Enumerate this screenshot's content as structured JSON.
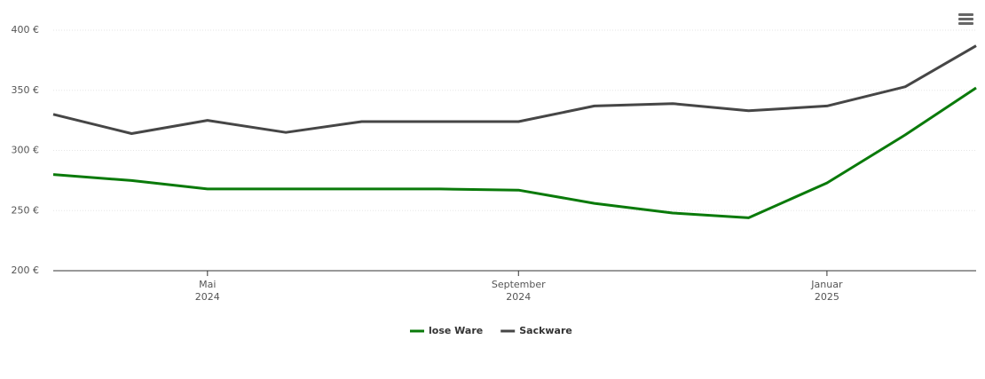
{
  "chart_data": {
    "type": "line",
    "x": [
      "2024-03",
      "2024-04",
      "2024-05",
      "2024-06",
      "2024-07",
      "2024-08",
      "2024-09",
      "2024-10",
      "2024-11",
      "2024-12",
      "2025-01",
      "2025-02",
      "2025-03"
    ],
    "series": [
      {
        "name": "lose Ware",
        "color": "#0a7a0a",
        "values": [
          280,
          275,
          268,
          268,
          268,
          268,
          267,
          256,
          248,
          244,
          273,
          313,
          352
        ]
      },
      {
        "name": "Sackware",
        "color": "#464646",
        "values": [
          330,
          314,
          325,
          315,
          324,
          324,
          324,
          337,
          339,
          333,
          337,
          353,
          387
        ]
      }
    ],
    "xlim": [
      "2024-03",
      "2025-03"
    ],
    "xticks": [
      {
        "value": "2024-05",
        "label": "Mai 2024"
      },
      {
        "value": "2024-09",
        "label": "September 2024"
      },
      {
        "value": "2025-01",
        "label": "Januar 2025"
      }
    ],
    "ylim": [
      200,
      400
    ],
    "yticks": [
      {
        "value": 200,
        "label": "200 €"
      },
      {
        "value": 250,
        "label": "250 €"
      },
      {
        "value": 300,
        "label": "300 €"
      },
      {
        "value": 350,
        "label": "350 €"
      },
      {
        "value": 400,
        "label": "400 €"
      }
    ],
    "grid": true,
    "legend": "bottom"
  }
}
